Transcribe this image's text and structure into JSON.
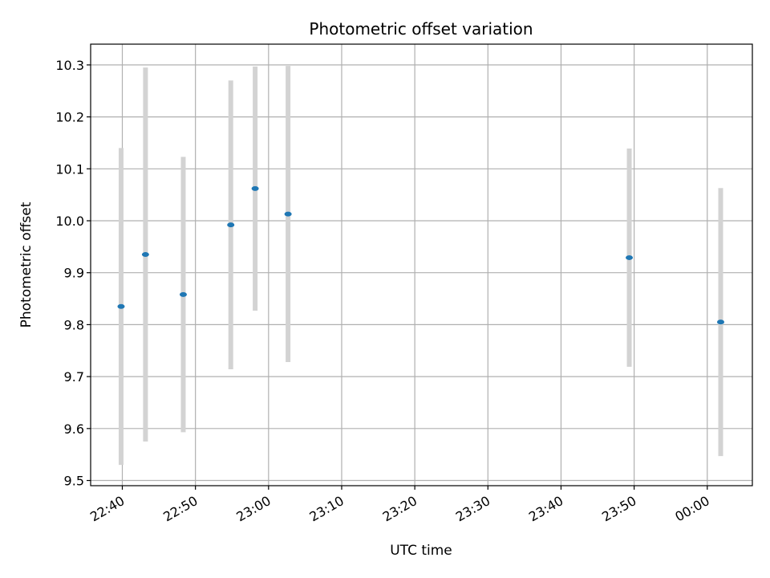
{
  "chart_data": {
    "type": "scatter",
    "title": "Photometric offset variation",
    "xlabel": "UTC time",
    "ylabel": "Photometric offset",
    "x_axis_kind": "time",
    "x_ticks": [
      "22:40",
      "22:50",
      "23:00",
      "23:10",
      "23:20",
      "23:30",
      "23:40",
      "23:50",
      "00:00"
    ],
    "xlim": [
      "22:35:40",
      "00:06:10"
    ],
    "ylim": [
      9.49,
      10.34
    ],
    "y_ticks": [
      "9.5",
      "9.6",
      "9.7",
      "9.8",
      "9.9",
      "10.0",
      "10.1",
      "10.2",
      "10.3"
    ],
    "grid": true,
    "series": [
      {
        "x": [
          "22:39:50",
          "22:43:10",
          "22:48:20",
          "22:54:50",
          "22:58:10",
          "23:02:40",
          "23:49:20",
          "00:01:50"
        ],
        "y": [
          9.835,
          9.935,
          9.858,
          9.992,
          10.062,
          10.013,
          9.929,
          9.805
        ],
        "yerr": [
          0.305,
          0.36,
          0.265,
          0.278,
          0.235,
          0.285,
          0.21,
          0.258
        ],
        "marker_color": "#1f77b4",
        "errorbar_color": "#d3d3d3"
      }
    ]
  }
}
